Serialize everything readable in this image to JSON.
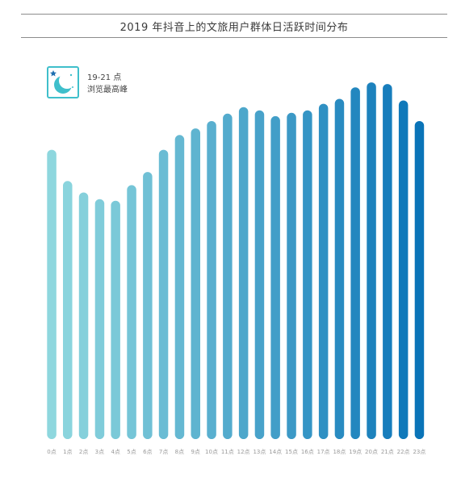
{
  "header": {
    "title": "2019 年抖音上的文旅用户群体日活跃时间分布"
  },
  "callout": {
    "line1": "19-21 点",
    "line2": "浏览最高峰",
    "icon": "moon-stars-icon"
  },
  "colors": {
    "light": "#8ed7de",
    "dark": "#0a74b8",
    "badge": "#3fbfcb"
  },
  "chart_data": {
    "type": "bar",
    "title": "2019 年抖音上的文旅用户群体日活跃时间分布",
    "categories": [
      "0点",
      "1点",
      "2点",
      "3点",
      "4点",
      "5点",
      "6点",
      "7点",
      "8点",
      "9点",
      "10点",
      "11点",
      "12点",
      "13点",
      "14点",
      "15点",
      "16点",
      "17点",
      "18点",
      "19点",
      "20点",
      "21点",
      "22点",
      "23点"
    ],
    "values": [
      352,
      314,
      300,
      292,
      290,
      309,
      325,
      352,
      370,
      378,
      387,
      396,
      404,
      400,
      393,
      397,
      400,
      408,
      414,
      428,
      434,
      432,
      412,
      387
    ],
    "ylim": [
      0,
      440
    ],
    "grid": false,
    "legend": "none"
  }
}
